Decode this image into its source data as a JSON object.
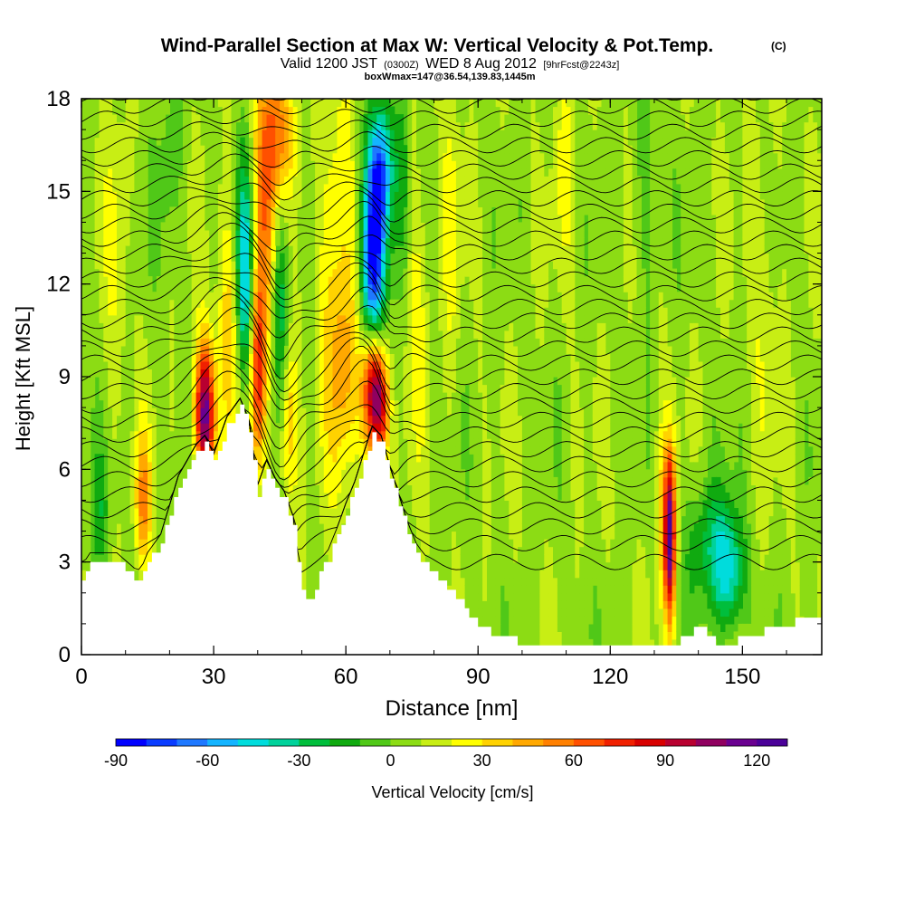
{
  "chart_data": {
    "type": "heatmap",
    "title_main": "Wind-Parallel Section at Max W: Vertical Velocity & Pot.Temp.",
    "title_mark": "(C)",
    "subtitle_a": "Valid 1200 JST",
    "subtitle_b": "(0300Z)",
    "subtitle_c": "WED 8 Aug 2012",
    "subtitle_d": "[9hrFcst@2243z]",
    "subtitle_line3": "boxWmax=147@36.54,139.83,1445m",
    "xlabel": "Distance [nm]",
    "ylabel": "Height [Kft MSL]",
    "xlim": [
      0,
      168
    ],
    "ylim": [
      0,
      18
    ],
    "x_ticks": [
      0,
      30,
      60,
      90,
      120,
      150
    ],
    "y_ticks": [
      0,
      3,
      6,
      9,
      12,
      15,
      18
    ],
    "colorbar": {
      "label": "Vertical Velocity [cm/s]",
      "min": -90,
      "max": 130,
      "step": 10,
      "tick_values": [
        -90,
        -60,
        -30,
        0,
        30,
        60,
        90,
        120
      ],
      "colors": [
        "#0000ff",
        "#0a3cff",
        "#1e78ff",
        "#14b4ff",
        "#00dcdc",
        "#00d29b",
        "#00be3c",
        "#10aa10",
        "#50c818",
        "#8cdc14",
        "#c8ee14",
        "#ffff00",
        "#ffd200",
        "#ffa800",
        "#ff8000",
        "#ff5000",
        "#f02000",
        "#d80000",
        "#b80030",
        "#900060",
        "#6a0090",
        "#4a0098"
      ]
    },
    "terrain_profile": {
      "x": [
        0,
        2,
        8,
        12,
        13,
        15,
        18,
        22,
        26,
        28,
        30,
        33,
        36,
        38,
        40,
        42,
        44,
        46,
        48,
        50,
        52,
        54,
        56,
        58,
        60,
        62,
        64,
        66,
        68,
        70,
        72,
        74,
        76,
        78,
        80,
        84,
        88,
        90,
        95,
        100,
        110,
        120,
        130,
        135,
        140,
        145,
        150,
        155,
        160,
        165,
        168
      ],
      "height_kft": [
        2.3,
        3.0,
        3.0,
        2.5,
        2.3,
        3.0,
        3.6,
        5.5,
        6.5,
        6.8,
        6.2,
        7.4,
        8.0,
        7.3,
        5.2,
        6.0,
        5.4,
        5.0,
        4.2,
        2.0,
        1.7,
        2.6,
        3.1,
        3.8,
        4.6,
        5.3,
        6.2,
        7.1,
        6.8,
        5.8,
        4.9,
        4.0,
        3.3,
        2.9,
        2.6,
        2.0,
        1.3,
        0.9,
        0.6,
        0.4,
        0.3,
        0.3,
        0.4,
        0.4,
        0.9,
        0.3,
        0.5,
        0.8,
        1.0,
        1.2,
        1.2
      ]
    },
    "vertical_velocity_features": [
      {
        "x": 28,
        "y": 7.8,
        "sx": 1.6,
        "sy": 1.6,
        "w": 110
      },
      {
        "x": 14,
        "y": 5.0,
        "sx": 1.3,
        "sy": 1.5,
        "w": 45
      },
      {
        "x": 33,
        "y": 10.5,
        "sx": 1.5,
        "sy": 3.0,
        "w": 28
      },
      {
        "x": 37,
        "y": 12.5,
        "sx": 1.3,
        "sy": 2.5,
        "w": -55
      },
      {
        "x": 40,
        "y": 9.0,
        "sx": 1.2,
        "sy": 2.0,
        "w": 65
      },
      {
        "x": 42,
        "y": 14.5,
        "sx": 2.0,
        "sy": 3.5,
        "w": 50
      },
      {
        "x": 45,
        "y": 17.0,
        "sx": 2.5,
        "sy": 1.5,
        "w": 40
      },
      {
        "x": 45,
        "y": 11.5,
        "sx": 1.5,
        "sy": 2.5,
        "w": -42
      },
      {
        "x": 47,
        "y": 7.5,
        "sx": 1.5,
        "sy": 2.0,
        "w": 35
      },
      {
        "x": 58,
        "y": 12.5,
        "sx": 3.0,
        "sy": 4.5,
        "w": 28
      },
      {
        "x": 60,
        "y": 9.0,
        "sx": 2.5,
        "sy": 2.0,
        "w": 22
      },
      {
        "x": 66,
        "y": 8.8,
        "sx": 1.6,
        "sy": 1.6,
        "w": 100
      },
      {
        "x": 68,
        "y": 8.0,
        "sx": 1.3,
        "sy": 1.2,
        "w": 60
      },
      {
        "x": 66.5,
        "y": 13.5,
        "sx": 2.0,
        "sy": 2.0,
        "w": -85
      },
      {
        "x": 68,
        "y": 15.8,
        "sx": 2.0,
        "sy": 1.5,
        "w": -60
      },
      {
        "x": 66,
        "y": 11.0,
        "sx": 1.8,
        "sy": 1.5,
        "w": -45
      },
      {
        "x": 73,
        "y": 15.5,
        "sx": 1.2,
        "sy": 2.5,
        "w": -20
      },
      {
        "x": 76,
        "y": 11.5,
        "sx": 2.0,
        "sy": 3.0,
        "w": 18
      },
      {
        "x": 133.5,
        "y": 3.8,
        "sx": 0.9,
        "sy": 1.9,
        "w": 115
      },
      {
        "x": 131.5,
        "y": 4.5,
        "sx": 1.0,
        "sy": 2.5,
        "w": 22
      },
      {
        "x": 141,
        "y": 3.5,
        "sx": 3.0,
        "sy": 1.5,
        "w": -25
      },
      {
        "x": 146,
        "y": 3.0,
        "sx": 2.5,
        "sy": 1.5,
        "w": -40
      },
      {
        "x": 148,
        "y": 2.5,
        "sx": 2.0,
        "sy": 1.2,
        "w": -22
      },
      {
        "x": 4,
        "y": 4.5,
        "sx": 1.5,
        "sy": 1.5,
        "w": -22
      },
      {
        "x": 84,
        "y": 14.0,
        "sx": 1.5,
        "sy": 3.5,
        "w": 16
      },
      {
        "x": 110,
        "y": 16.0,
        "sx": 2.0,
        "sy": 2.5,
        "w": 14
      },
      {
        "x": 128,
        "y": 15.0,
        "sx": 2.0,
        "sy": 3.0,
        "w": -12
      },
      {
        "x": 155,
        "y": 12.0,
        "sx": 2.5,
        "sy": 4.0,
        "w": 12
      },
      {
        "x": 8,
        "y": 13.0,
        "sx": 2.0,
        "sy": 4.0,
        "w": 12
      },
      {
        "x": 20,
        "y": 16.0,
        "sx": 2.0,
        "sy": 2.0,
        "w": -14
      }
    ],
    "potential_temperature_contours": {
      "count": 34,
      "surface_height_kft": 3.0,
      "top_height_kft": 18.2
    }
  }
}
